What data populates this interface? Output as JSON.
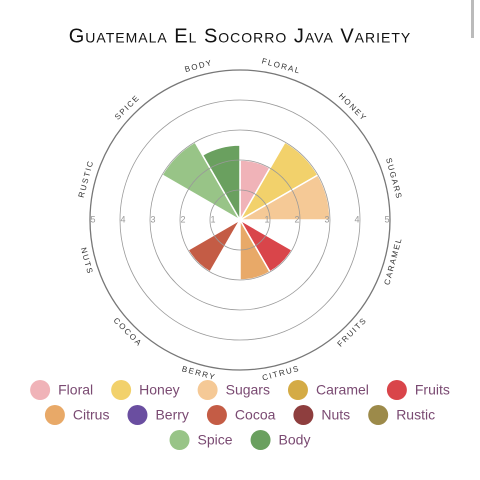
{
  "chart_data": {
    "type": "polar",
    "title": "Guatemala El Socorro Java Variety",
    "categories": [
      "Floral",
      "Honey",
      "Sugars",
      "Caramel",
      "Fruits",
      "Citrus",
      "Berry",
      "Cocoa",
      "Nuts",
      "Rustic",
      "Spice",
      "Body"
    ],
    "values": [
      2,
      3,
      3,
      0,
      2,
      2,
      0,
      2,
      0,
      0,
      3,
      2.5
    ],
    "colors": [
      "#f0b3b8",
      "#f2d16b",
      "#f5c996",
      "#d4ab45",
      "#d9454a",
      "#e8a968",
      "#6a4ea0",
      "#c45c45",
      "#8e3e3e",
      "#9c8a4a",
      "#98c487",
      "#6aa05f"
    ],
    "rlim": [
      0,
      5
    ],
    "rticks": [
      1,
      2,
      3,
      4,
      5
    ]
  }
}
